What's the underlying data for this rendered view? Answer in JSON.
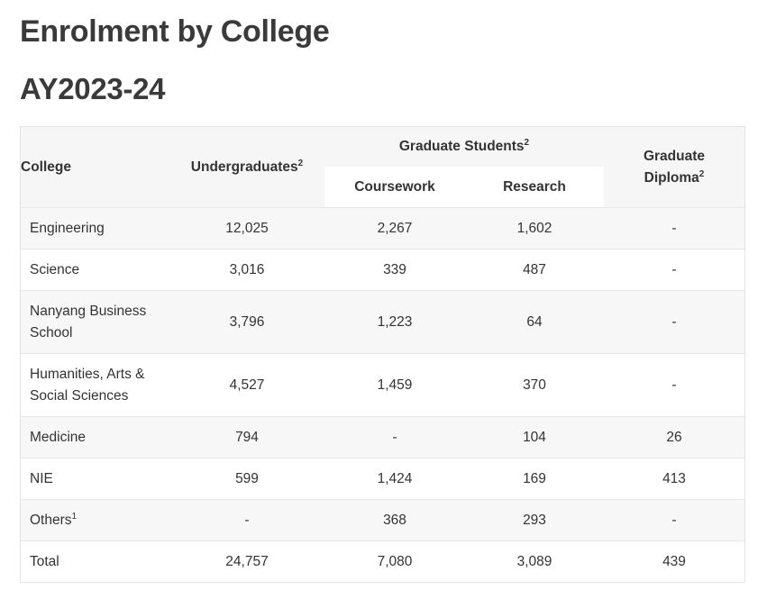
{
  "title": "Enrolment by College",
  "subtitle": "AY2023-24",
  "table": {
    "headers": {
      "college": "College",
      "undergraduates": "Undergraduates",
      "undergraduates_sup": "2",
      "graduate_students": "Graduate Students",
      "graduate_students_sup": "2",
      "coursework": "Coursework",
      "research": "Research",
      "graduate_diploma_line1": "Graduate",
      "graduate_diploma_line2": "Diploma",
      "graduate_diploma_sup": "2"
    },
    "rows": [
      {
        "college": "Engineering",
        "college_line2": "",
        "college_sup": "",
        "undergraduates": "12,025",
        "coursework": "2,267",
        "research": "1,602",
        "graduate_diploma": "-"
      },
      {
        "college": "Science",
        "college_line2": "",
        "college_sup": "",
        "undergraduates": "3,016",
        "coursework": "339",
        "research": "487",
        "graduate_diploma": "-"
      },
      {
        "college": "Nanyang Business",
        "college_line2": "School",
        "college_sup": "",
        "undergraduates": "3,796",
        "coursework": "1,223",
        "research": "64",
        "graduate_diploma": "-"
      },
      {
        "college": "Humanities, Arts &",
        "college_line2": "Social Sciences",
        "college_sup": "",
        "undergraduates": "4,527",
        "coursework": "1,459",
        "research": "370",
        "graduate_diploma": "-"
      },
      {
        "college": "Medicine",
        "college_line2": "",
        "college_sup": "",
        "undergraduates": "794",
        "coursework": "-",
        "research": "104",
        "graduate_diploma": "26"
      },
      {
        "college": "NIE",
        "college_line2": "",
        "college_sup": "",
        "undergraduates": "599",
        "coursework": "1,424",
        "research": "169",
        "graduate_diploma": "413"
      },
      {
        "college": "Others",
        "college_line2": "",
        "college_sup": "1",
        "undergraduates": "-",
        "coursework": "368",
        "research": "293",
        "graduate_diploma": "-"
      },
      {
        "college": "Total",
        "college_line2": "",
        "college_sup": "",
        "undergraduates": "24,757",
        "coursework": "7,080",
        "research": "3,089",
        "graduate_diploma": "439"
      }
    ]
  }
}
